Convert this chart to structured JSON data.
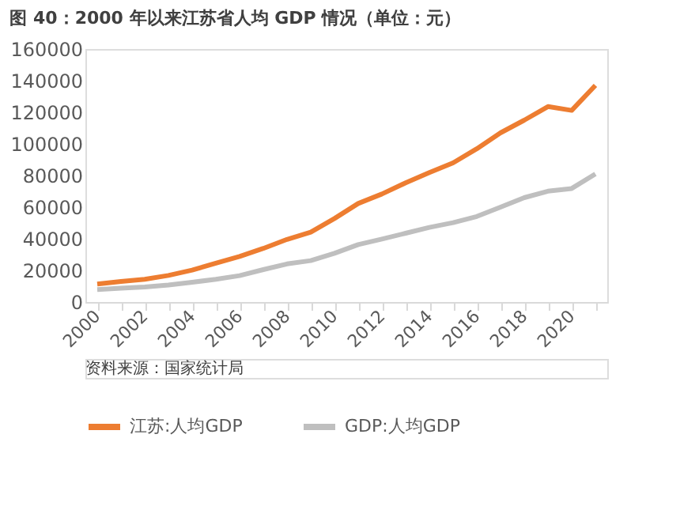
{
  "chart_data": {
    "type": "line",
    "title": "图 40：2000 年以来江苏省人均 GDP 情况（单位：元）",
    "categories": [
      "2000",
      null,
      "2002",
      null,
      "2004",
      null,
      "2006",
      null,
      "2008",
      null,
      "2010",
      null,
      "2012",
      null,
      "2014",
      null,
      "2016",
      null,
      "2018",
      null,
      "2020",
      null
    ],
    "series": [
      {
        "name": "江苏:人均GDP",
        "color": "#ed7d31",
        "values": [
          11400,
          13000,
          14400,
          16800,
          20200,
          24600,
          28800,
          33900,
          39600,
          44200,
          52800,
          62300,
          68300,
          75400,
          81900,
          88000,
          96900,
          107000,
          115000,
          123600,
          121200,
          137000
        ]
      },
      {
        "name": "GDP:人均GDP",
        "color": "#bfbfbf",
        "values": [
          7900,
          8700,
          9500,
          10700,
          12500,
          14400,
          16700,
          20500,
          24100,
          26200,
          30800,
          36300,
          39800,
          43500,
          47200,
          50200,
          54100,
          60000,
          66000,
          70100,
          71800,
          81000
        ]
      }
    ],
    "ylim": [
      0,
      160000
    ],
    "yticks": [
      0,
      20000,
      40000,
      60000,
      80000,
      100000,
      120000,
      140000,
      160000
    ],
    "grid": false,
    "legend": "bottom",
    "marker": "none",
    "line_style": "solid",
    "annotations": [
      "资料来源：国家统计局"
    ]
  }
}
